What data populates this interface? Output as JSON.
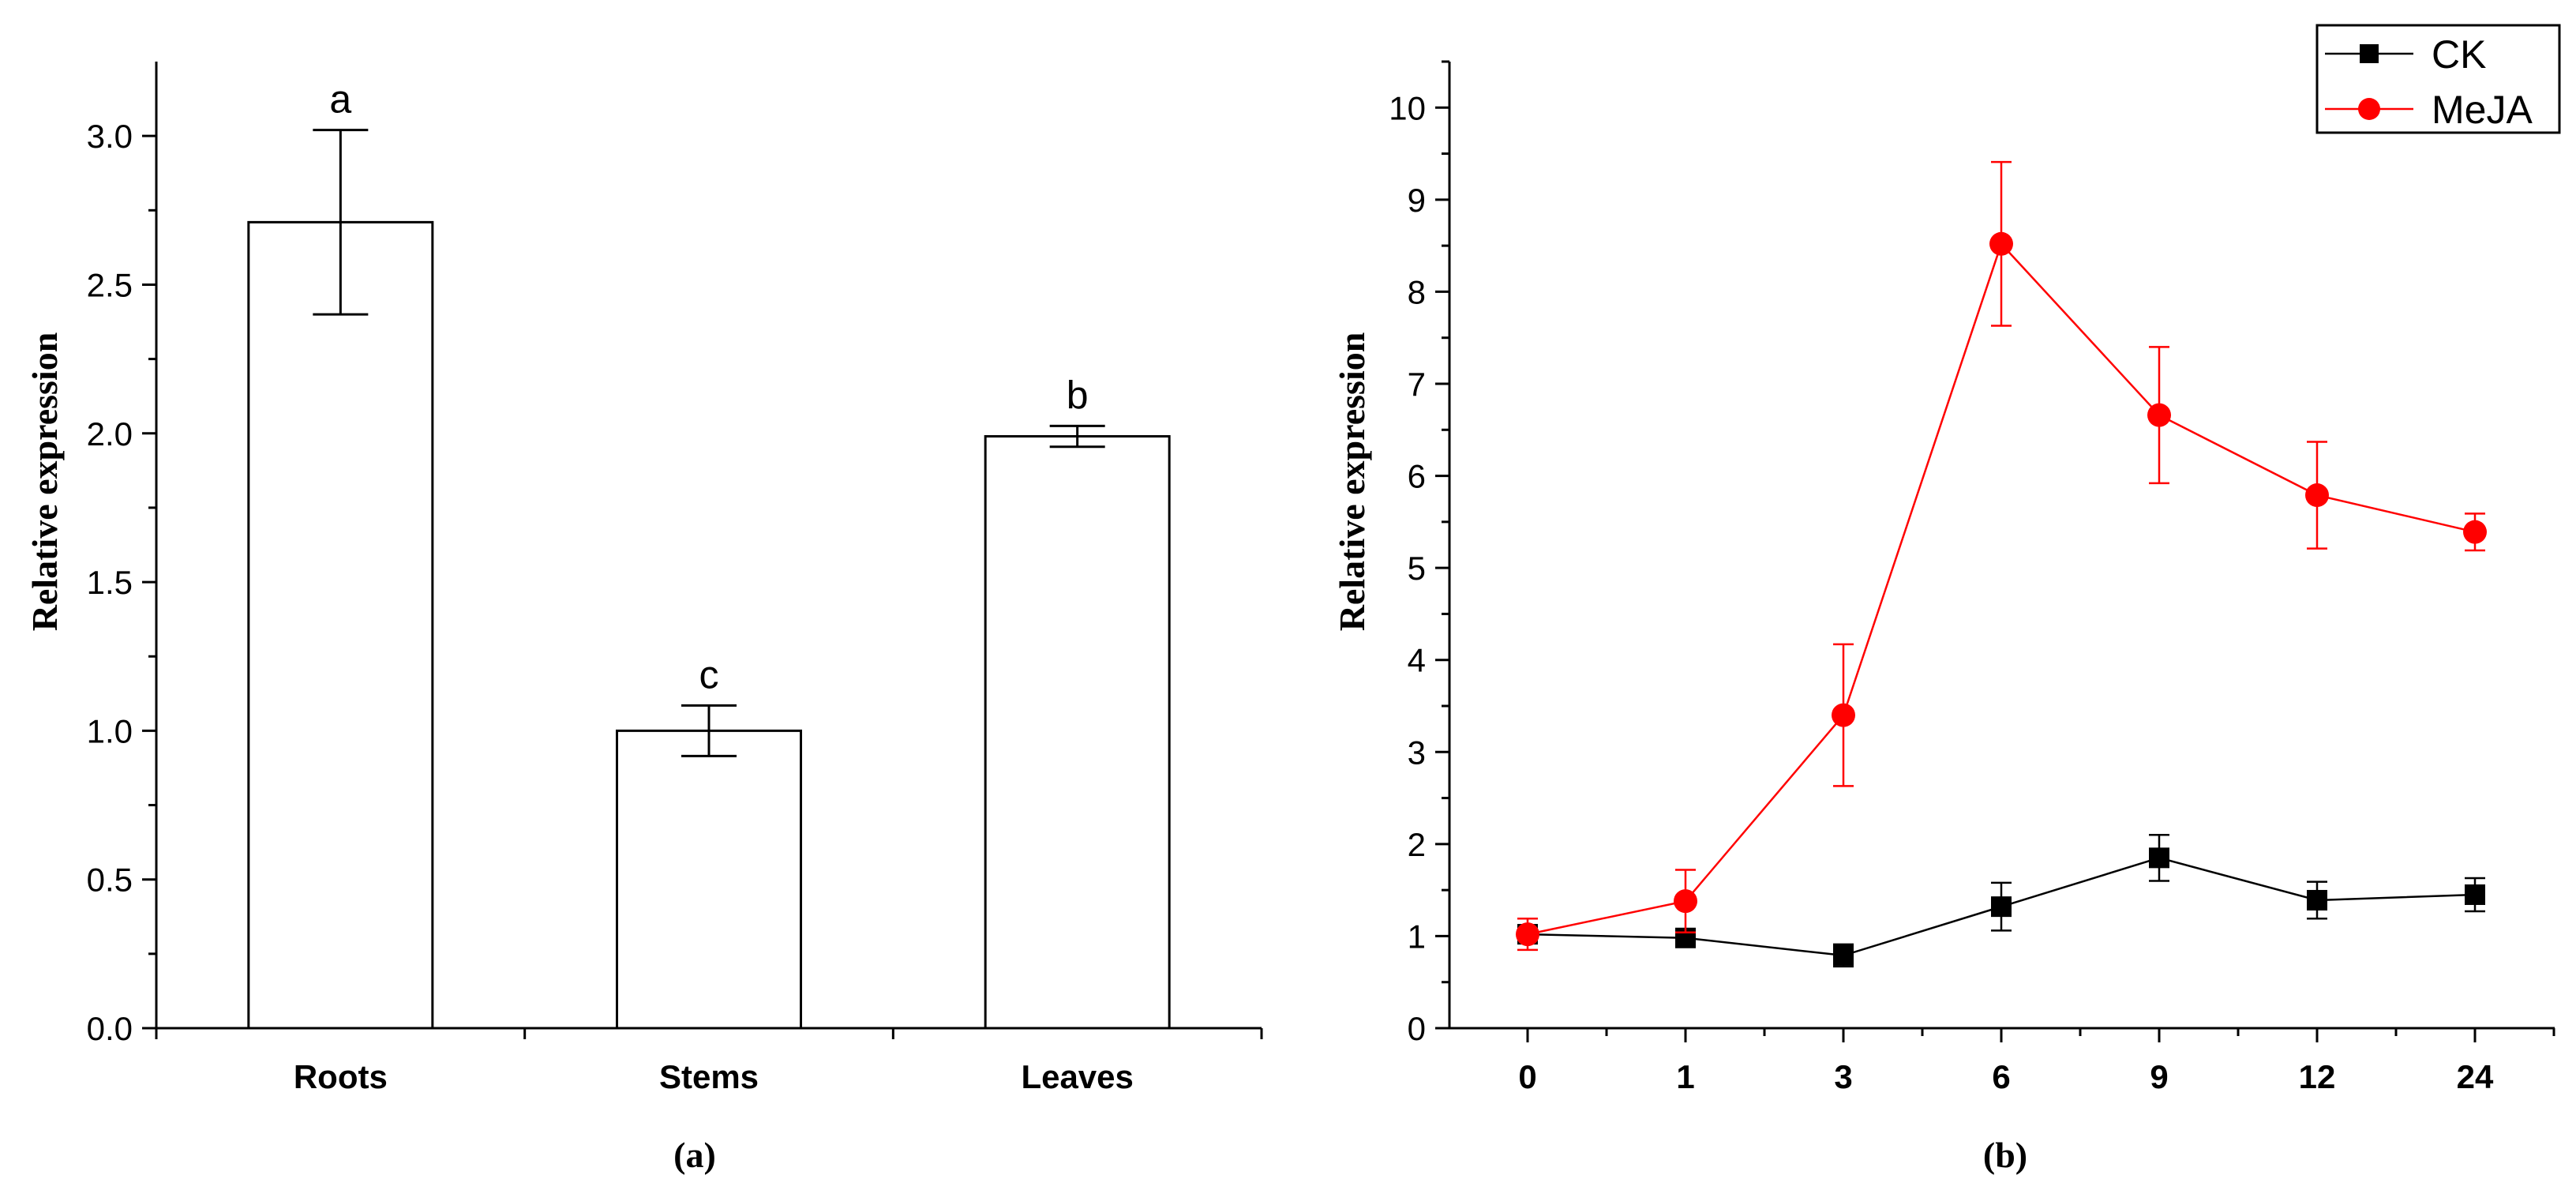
{
  "chart_data": [
    {
      "panel": "(a)",
      "type": "bar",
      "ylabel": "Relative expression",
      "xlabel": "",
      "ylim": [
        0,
        3.25
      ],
      "yticks": [
        0.0,
        0.5,
        1.0,
        1.5,
        2.0,
        2.5,
        3.0
      ],
      "ytick_labels": [
        "0.0",
        "0.5",
        "1.0",
        "1.5",
        "2.0",
        "2.5",
        "3.0"
      ],
      "categories": [
        "Roots",
        "Stems",
        "Leaves"
      ],
      "values": [
        2.71,
        1.0,
        1.99
      ],
      "errors": [
        0.31,
        0.085,
        0.035
      ],
      "significance": [
        "a",
        "c",
        "b"
      ],
      "bar_fill": "#ffffff",
      "bar_stroke": "#000000"
    },
    {
      "panel": "(b)",
      "type": "line",
      "ylabel": "Relative expression",
      "xlabel": "",
      "ylim": [
        0,
        10.5
      ],
      "yticks": [
        0,
        1,
        2,
        3,
        4,
        5,
        6,
        7,
        8,
        9,
        10
      ],
      "ytick_labels": [
        "0",
        "1",
        "2",
        "3",
        "4",
        "5",
        "6",
        "7",
        "8",
        "9",
        "10"
      ],
      "categories": [
        "0",
        "1",
        "3",
        "6",
        "9",
        "12",
        "24"
      ],
      "legend": "top-right",
      "series": [
        {
          "name": "CK",
          "marker": "square",
          "color": "#000000",
          "values": [
            1.02,
            0.98,
            0.79,
            1.32,
            1.85,
            1.39,
            1.45
          ],
          "errors": [
            0.1,
            0.06,
            0.12,
            0.26,
            0.25,
            0.2,
            0.18
          ]
        },
        {
          "name": "MeJA",
          "marker": "circle",
          "color": "#ff0000",
          "values": [
            1.02,
            1.38,
            3.4,
            8.52,
            6.66,
            5.79,
            5.39
          ],
          "errors": [
            0.17,
            0.34,
            0.77,
            0.89,
            0.74,
            0.58,
            0.2
          ]
        }
      ]
    }
  ]
}
